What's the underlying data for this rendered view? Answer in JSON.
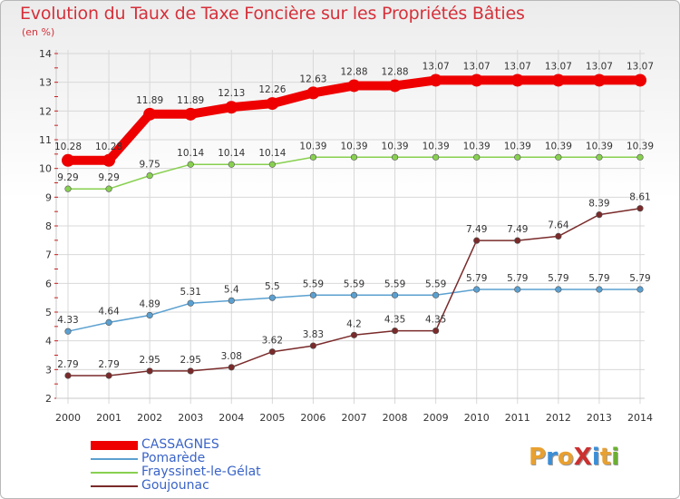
{
  "title": "Evolution du Taux de Taxe Foncière sur les Propriétés Bâties",
  "subtitle": "(en %)",
  "logo": "ProXiti",
  "colors": {
    "title": "#d6303a",
    "grid": "#d8d8d8",
    "axis_ticks": "#cc2222",
    "logo_letters": [
      "#e8a030",
      "#3a8ed8",
      "#e8a030",
      "#cc3030",
      "#3a8ed8",
      "#e8a030",
      "#6ab030"
    ]
  },
  "chart_data": {
    "type": "line",
    "title": "Evolution du Taux de Taxe Foncière sur les Propriétés Bâties",
    "ylabel": "(en %)",
    "xlabel": "",
    "x": [
      "2000",
      "2001",
      "2002",
      "2003",
      "2004",
      "2005",
      "2006",
      "2007",
      "2008",
      "2009",
      "2010",
      "2011",
      "2012",
      "2013",
      "2014"
    ],
    "ylim": [
      2,
      14
    ],
    "yticks": [
      2,
      3,
      4,
      5,
      6,
      7,
      8,
      9,
      10,
      11,
      12,
      13,
      14
    ],
    "grid": true,
    "legend_position": "bottom-left",
    "series": [
      {
        "name": "CASSAGNES",
        "color": "#ee0000",
        "weight": "heavy",
        "values": [
          10.28,
          10.28,
          11.89,
          11.89,
          12.13,
          12.26,
          12.63,
          12.88,
          12.88,
          13.07,
          13.07,
          13.07,
          13.07,
          13.07,
          13.07
        ],
        "labels": [
          "10.28",
          "10.28",
          "11.89",
          "11.89",
          "12.13",
          "12.26",
          "12.63",
          "12.88",
          "12.88",
          "13.07",
          "13.07",
          "13.07",
          "13.07",
          "13.07",
          "13.07"
        ]
      },
      {
        "name": "Pomarède",
        "color": "#5ba0d0",
        "weight": "thin",
        "values": [
          4.33,
          4.64,
          4.89,
          5.31,
          5.4,
          5.5,
          5.59,
          5.59,
          5.59,
          5.59,
          5.79,
          5.79,
          5.79,
          5.79,
          5.79
        ],
        "labels": [
          "4.33",
          "4.64",
          "4.89",
          "5.31",
          "5.4",
          "5.5",
          "5.59",
          "5.59",
          "5.59",
          "5.59",
          "5.79",
          "5.79",
          "5.79",
          "5.79",
          "5.79"
        ]
      },
      {
        "name": "Frayssinet-le-Gélat",
        "color": "#88d050",
        "weight": "thin",
        "values": [
          9.29,
          9.29,
          9.75,
          10.14,
          10.14,
          10.14,
          10.39,
          10.39,
          10.39,
          10.39,
          10.39,
          10.39,
          10.39,
          10.39,
          10.39
        ],
        "labels": [
          "9.29",
          "9.29",
          "9.75",
          "10.14",
          "10.14",
          "10.14",
          "10.39",
          "10.39",
          "10.39",
          "10.39",
          "10.39",
          "10.39",
          "10.39",
          "10.39",
          "10.39"
        ]
      },
      {
        "name": "Goujounac",
        "color": "#7a2a2a",
        "weight": "thin",
        "values": [
          2.79,
          2.79,
          2.95,
          2.95,
          3.08,
          3.62,
          3.83,
          4.2,
          4.35,
          4.35,
          7.49,
          7.49,
          7.64,
          8.39,
          8.61
        ],
        "labels": [
          "2.79",
          "2.79",
          "2.95",
          "2.95",
          "3.08",
          "3.62",
          "3.83",
          "4.2",
          "4.35",
          "4.35",
          "7.49",
          "7.49",
          "7.64",
          "8.39",
          "8.61"
        ]
      }
    ]
  }
}
